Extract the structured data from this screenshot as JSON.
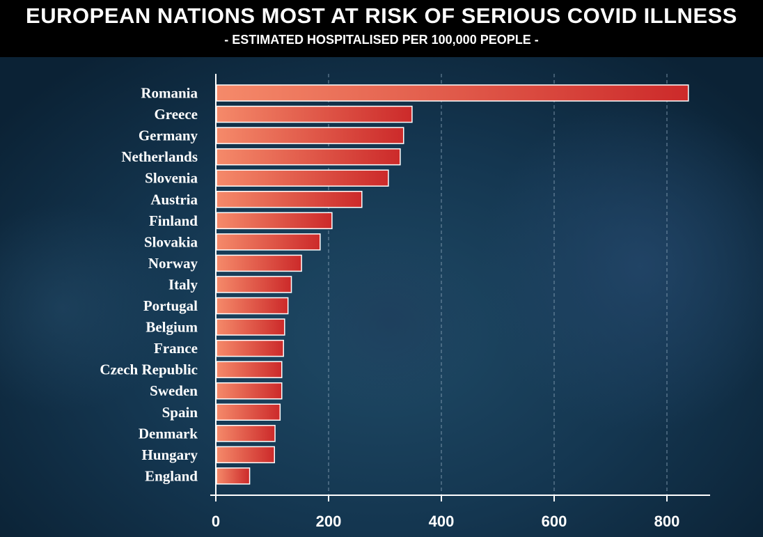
{
  "header": {
    "title": "EUROPEAN NATIONS MOST AT RISK OF SERIOUS COVID ILLNESS",
    "subtitle": "- ESTIMATED HOSPITALISED PER 100,000 PEOPLE -"
  },
  "colors": {
    "bar_start": "#f58a6a",
    "bar_end": "#cc2a2a",
    "grid": "#8fa8bc",
    "header_bg": "#000000",
    "text": "#ffffff"
  },
  "chart_data": {
    "type": "bar",
    "orientation": "horizontal",
    "title": "EUROPEAN NATIONS MOST AT RISK OF SERIOUS COVID ILLNESS",
    "subtitle": "- ESTIMATED HOSPITALISED PER 100,000 PEOPLE -",
    "xlabel": "",
    "ylabel": "",
    "categories": [
      "Romania",
      "Greece",
      "Germany",
      "Netherlands",
      "Slovenia",
      "Austria",
      "Finland",
      "Slovakia",
      "Norway",
      "Italy",
      "Portugal",
      "Belgium",
      "France",
      "Czech Republic",
      "Sweden",
      "Spain",
      "Denmark",
      "Hungary",
      "England"
    ],
    "values": [
      838,
      348,
      333,
      327,
      306,
      259,
      206,
      185,
      152,
      134,
      128,
      122,
      120,
      117,
      117,
      114,
      105,
      104,
      60
    ],
    "xlim": [
      0,
      850
    ],
    "xticks": [
      0,
      200,
      400,
      600,
      800
    ],
    "grid": "vertical-dashed",
    "legend": "none"
  }
}
